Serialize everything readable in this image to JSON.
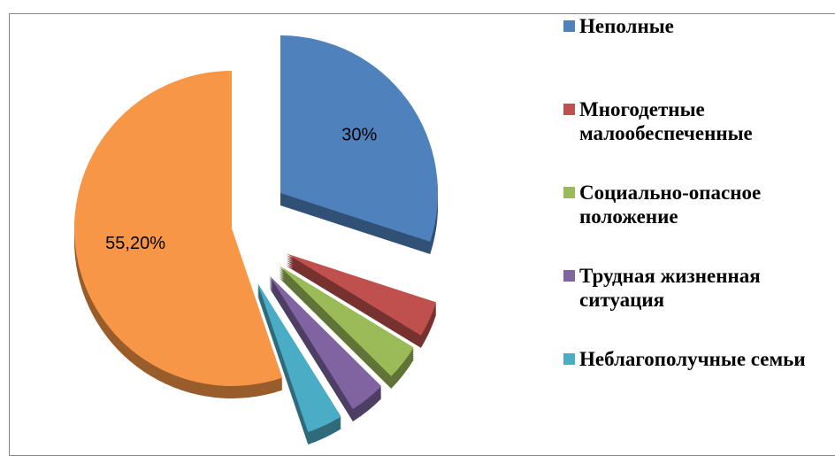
{
  "chart_data": {
    "type": "pie",
    "categories": [
      "Неполные",
      "Многодетные малообеспеченные",
      "Социально-опасное положение",
      "Трудная жизненная ситуация",
      "Неблагополучные семьи",
      null
    ],
    "values": [
      30,
      3.7,
      3.7,
      3.7,
      3.7,
      55.2
    ],
    "value_labels": [
      "30%",
      null,
      null,
      null,
      null,
      "55,20%"
    ],
    "colors": [
      "#4f81bd",
      "#c0504d",
      "#9bbb59",
      "#8064a2",
      "#4bacc6",
      "#f79646"
    ],
    "legend": "right"
  }
}
